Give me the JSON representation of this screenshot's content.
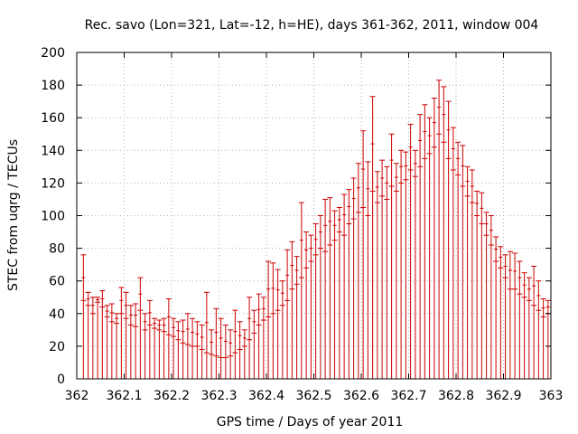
{
  "chart_data": {
    "type": "scatter",
    "title": "Rec. savo (Lon=321, Lat=-12, h=HE), days 361-362, 2011, window 004",
    "xlabel": "GPS time / Days of year 2011",
    "ylabel": "STEC from uqrg / TECUs",
    "xlim": [
      362,
      363
    ],
    "ylim": [
      0,
      200
    ],
    "x_ticks": [
      362,
      362.1,
      362.2,
      362.3,
      362.4,
      362.5,
      362.6,
      362.7,
      362.8,
      362.9,
      363
    ],
    "x_tick_labels": [
      "362",
      "362.1",
      "362.2",
      "362.3",
      "362.4",
      "362.5",
      "362.6",
      "362.7",
      "362.8",
      "362.9",
      "363"
    ],
    "y_ticks": [
      0,
      20,
      40,
      60,
      80,
      100,
      120,
      140,
      160,
      180,
      200
    ],
    "y_tick_labels": [
      "0",
      "20",
      "40",
      "60",
      "80",
      "100",
      "120",
      "140",
      "160",
      "180",
      "200"
    ],
    "grid": true,
    "series_color": "#cc0000",
    "errorbar_style": "vertical bars from 0 to upper value with tick marks",
    "points": [
      {
        "x": 362.014,
        "y": 48,
        "upper": 76
      },
      {
        "x": 362.024,
        "y": 45,
        "upper": 53
      },
      {
        "x": 362.034,
        "y": 40,
        "upper": 50
      },
      {
        "x": 362.044,
        "y": 47,
        "upper": 50
      },
      {
        "x": 362.054,
        "y": 44,
        "upper": 54
      },
      {
        "x": 362.064,
        "y": 38,
        "upper": 45
      },
      {
        "x": 362.074,
        "y": 35,
        "upper": 46
      },
      {
        "x": 362.084,
        "y": 34,
        "upper": 40
      },
      {
        "x": 362.094,
        "y": 40,
        "upper": 56
      },
      {
        "x": 362.104,
        "y": 37,
        "upper": 53
      },
      {
        "x": 362.114,
        "y": 33,
        "upper": 45
      },
      {
        "x": 362.124,
        "y": 32,
        "upper": 46
      },
      {
        "x": 362.134,
        "y": 42,
        "upper": 62
      },
      {
        "x": 362.144,
        "y": 30,
        "upper": 40
      },
      {
        "x": 362.154,
        "y": 33,
        "upper": 48
      },
      {
        "x": 362.164,
        "y": 31,
        "upper": 37
      },
      {
        "x": 362.174,
        "y": 30,
        "upper": 36
      },
      {
        "x": 362.184,
        "y": 29,
        "upper": 37
      },
      {
        "x": 362.194,
        "y": 27,
        "upper": 49
      },
      {
        "x": 362.204,
        "y": 26,
        "upper": 37
      },
      {
        "x": 362.214,
        "y": 24,
        "upper": 35
      },
      {
        "x": 362.224,
        "y": 22,
        "upper": 36
      },
      {
        "x": 362.234,
        "y": 21,
        "upper": 40
      },
      {
        "x": 362.244,
        "y": 20,
        "upper": 37
      },
      {
        "x": 362.254,
        "y": 20,
        "upper": 35
      },
      {
        "x": 362.264,
        "y": 18,
        "upper": 33
      },
      {
        "x": 362.274,
        "y": 16,
        "upper": 53
      },
      {
        "x": 362.284,
        "y": 15,
        "upper": 30
      },
      {
        "x": 362.294,
        "y": 14,
        "upper": 43
      },
      {
        "x": 362.304,
        "y": 13,
        "upper": 37
      },
      {
        "x": 362.314,
        "y": 13,
        "upper": 33
      },
      {
        "x": 362.324,
        "y": 14,
        "upper": 30
      },
      {
        "x": 362.334,
        "y": 16,
        "upper": 42
      },
      {
        "x": 362.344,
        "y": 18,
        "upper": 35
      },
      {
        "x": 362.354,
        "y": 20,
        "upper": 30
      },
      {
        "x": 362.364,
        "y": 24,
        "upper": 50
      },
      {
        "x": 362.374,
        "y": 28,
        "upper": 42
      },
      {
        "x": 362.384,
        "y": 33,
        "upper": 52
      },
      {
        "x": 362.394,
        "y": 36,
        "upper": 50
      },
      {
        "x": 362.404,
        "y": 38,
        "upper": 72
      },
      {
        "x": 362.414,
        "y": 40,
        "upper": 71
      },
      {
        "x": 362.424,
        "y": 42,
        "upper": 67
      },
      {
        "x": 362.434,
        "y": 45,
        "upper": 60
      },
      {
        "x": 362.444,
        "y": 48,
        "upper": 79
      },
      {
        "x": 362.454,
        "y": 55,
        "upper": 84
      },
      {
        "x": 362.464,
        "y": 58,
        "upper": 75
      },
      {
        "x": 362.474,
        "y": 62,
        "upper": 108
      },
      {
        "x": 362.484,
        "y": 68,
        "upper": 90
      },
      {
        "x": 362.494,
        "y": 72,
        "upper": 88
      },
      {
        "x": 362.504,
        "y": 76,
        "upper": 95
      },
      {
        "x": 362.514,
        "y": 80,
        "upper": 100
      },
      {
        "x": 362.524,
        "y": 78,
        "upper": 110
      },
      {
        "x": 362.534,
        "y": 82,
        "upper": 111
      },
      {
        "x": 362.544,
        "y": 85,
        "upper": 103
      },
      {
        "x": 362.554,
        "y": 90,
        "upper": 105
      },
      {
        "x": 362.564,
        "y": 88,
        "upper": 113
      },
      {
        "x": 362.574,
        "y": 95,
        "upper": 116
      },
      {
        "x": 362.584,
        "y": 98,
        "upper": 123
      },
      {
        "x": 362.594,
        "y": 102,
        "upper": 132
      },
      {
        "x": 362.604,
        "y": 105,
        "upper": 152
      },
      {
        "x": 362.614,
        "y": 100,
        "upper": 133
      },
      {
        "x": 362.624,
        "y": 115,
        "upper": 173
      },
      {
        "x": 362.634,
        "y": 108,
        "upper": 127
      },
      {
        "x": 362.644,
        "y": 112,
        "upper": 134
      },
      {
        "x": 362.654,
        "y": 110,
        "upper": 130
      },
      {
        "x": 362.664,
        "y": 118,
        "upper": 150
      },
      {
        "x": 362.674,
        "y": 115,
        "upper": 132
      },
      {
        "x": 362.684,
        "y": 120,
        "upper": 140
      },
      {
        "x": 362.694,
        "y": 122,
        "upper": 139
      },
      {
        "x": 362.704,
        "y": 128,
        "upper": 156
      },
      {
        "x": 362.714,
        "y": 124,
        "upper": 140
      },
      {
        "x": 362.724,
        "y": 130,
        "upper": 162
      },
      {
        "x": 362.734,
        "y": 135,
        "upper": 168
      },
      {
        "x": 362.744,
        "y": 138,
        "upper": 160
      },
      {
        "x": 362.754,
        "y": 142,
        "upper": 172
      },
      {
        "x": 362.764,
        "y": 150,
        "upper": 183
      },
      {
        "x": 362.774,
        "y": 145,
        "upper": 179
      },
      {
        "x": 362.784,
        "y": 135,
        "upper": 170
      },
      {
        "x": 362.794,
        "y": 128,
        "upper": 154
      },
      {
        "x": 362.804,
        "y": 125,
        "upper": 145
      },
      {
        "x": 362.814,
        "y": 118,
        "upper": 143
      },
      {
        "x": 362.824,
        "y": 112,
        "upper": 130
      },
      {
        "x": 362.834,
        "y": 108,
        "upper": 128
      },
      {
        "x": 362.844,
        "y": 100,
        "upper": 115
      },
      {
        "x": 362.854,
        "y": 95,
        "upper": 114
      },
      {
        "x": 362.864,
        "y": 88,
        "upper": 102
      },
      {
        "x": 362.874,
        "y": 82,
        "upper": 100
      },
      {
        "x": 362.884,
        "y": 72,
        "upper": 87
      },
      {
        "x": 362.894,
        "y": 68,
        "upper": 81
      },
      {
        "x": 362.904,
        "y": 62,
        "upper": 76
      },
      {
        "x": 362.914,
        "y": 55,
        "upper": 78
      },
      {
        "x": 362.924,
        "y": 55,
        "upper": 77
      },
      {
        "x": 362.934,
        "y": 52,
        "upper": 72
      },
      {
        "x": 362.944,
        "y": 50,
        "upper": 65
      },
      {
        "x": 362.954,
        "y": 48,
        "upper": 62
      },
      {
        "x": 362.964,
        "y": 45,
        "upper": 69
      },
      {
        "x": 362.974,
        "y": 42,
        "upper": 60
      },
      {
        "x": 362.984,
        "y": 38,
        "upper": 49
      },
      {
        "x": 362.994,
        "y": 40,
        "upper": 48
      }
    ]
  }
}
